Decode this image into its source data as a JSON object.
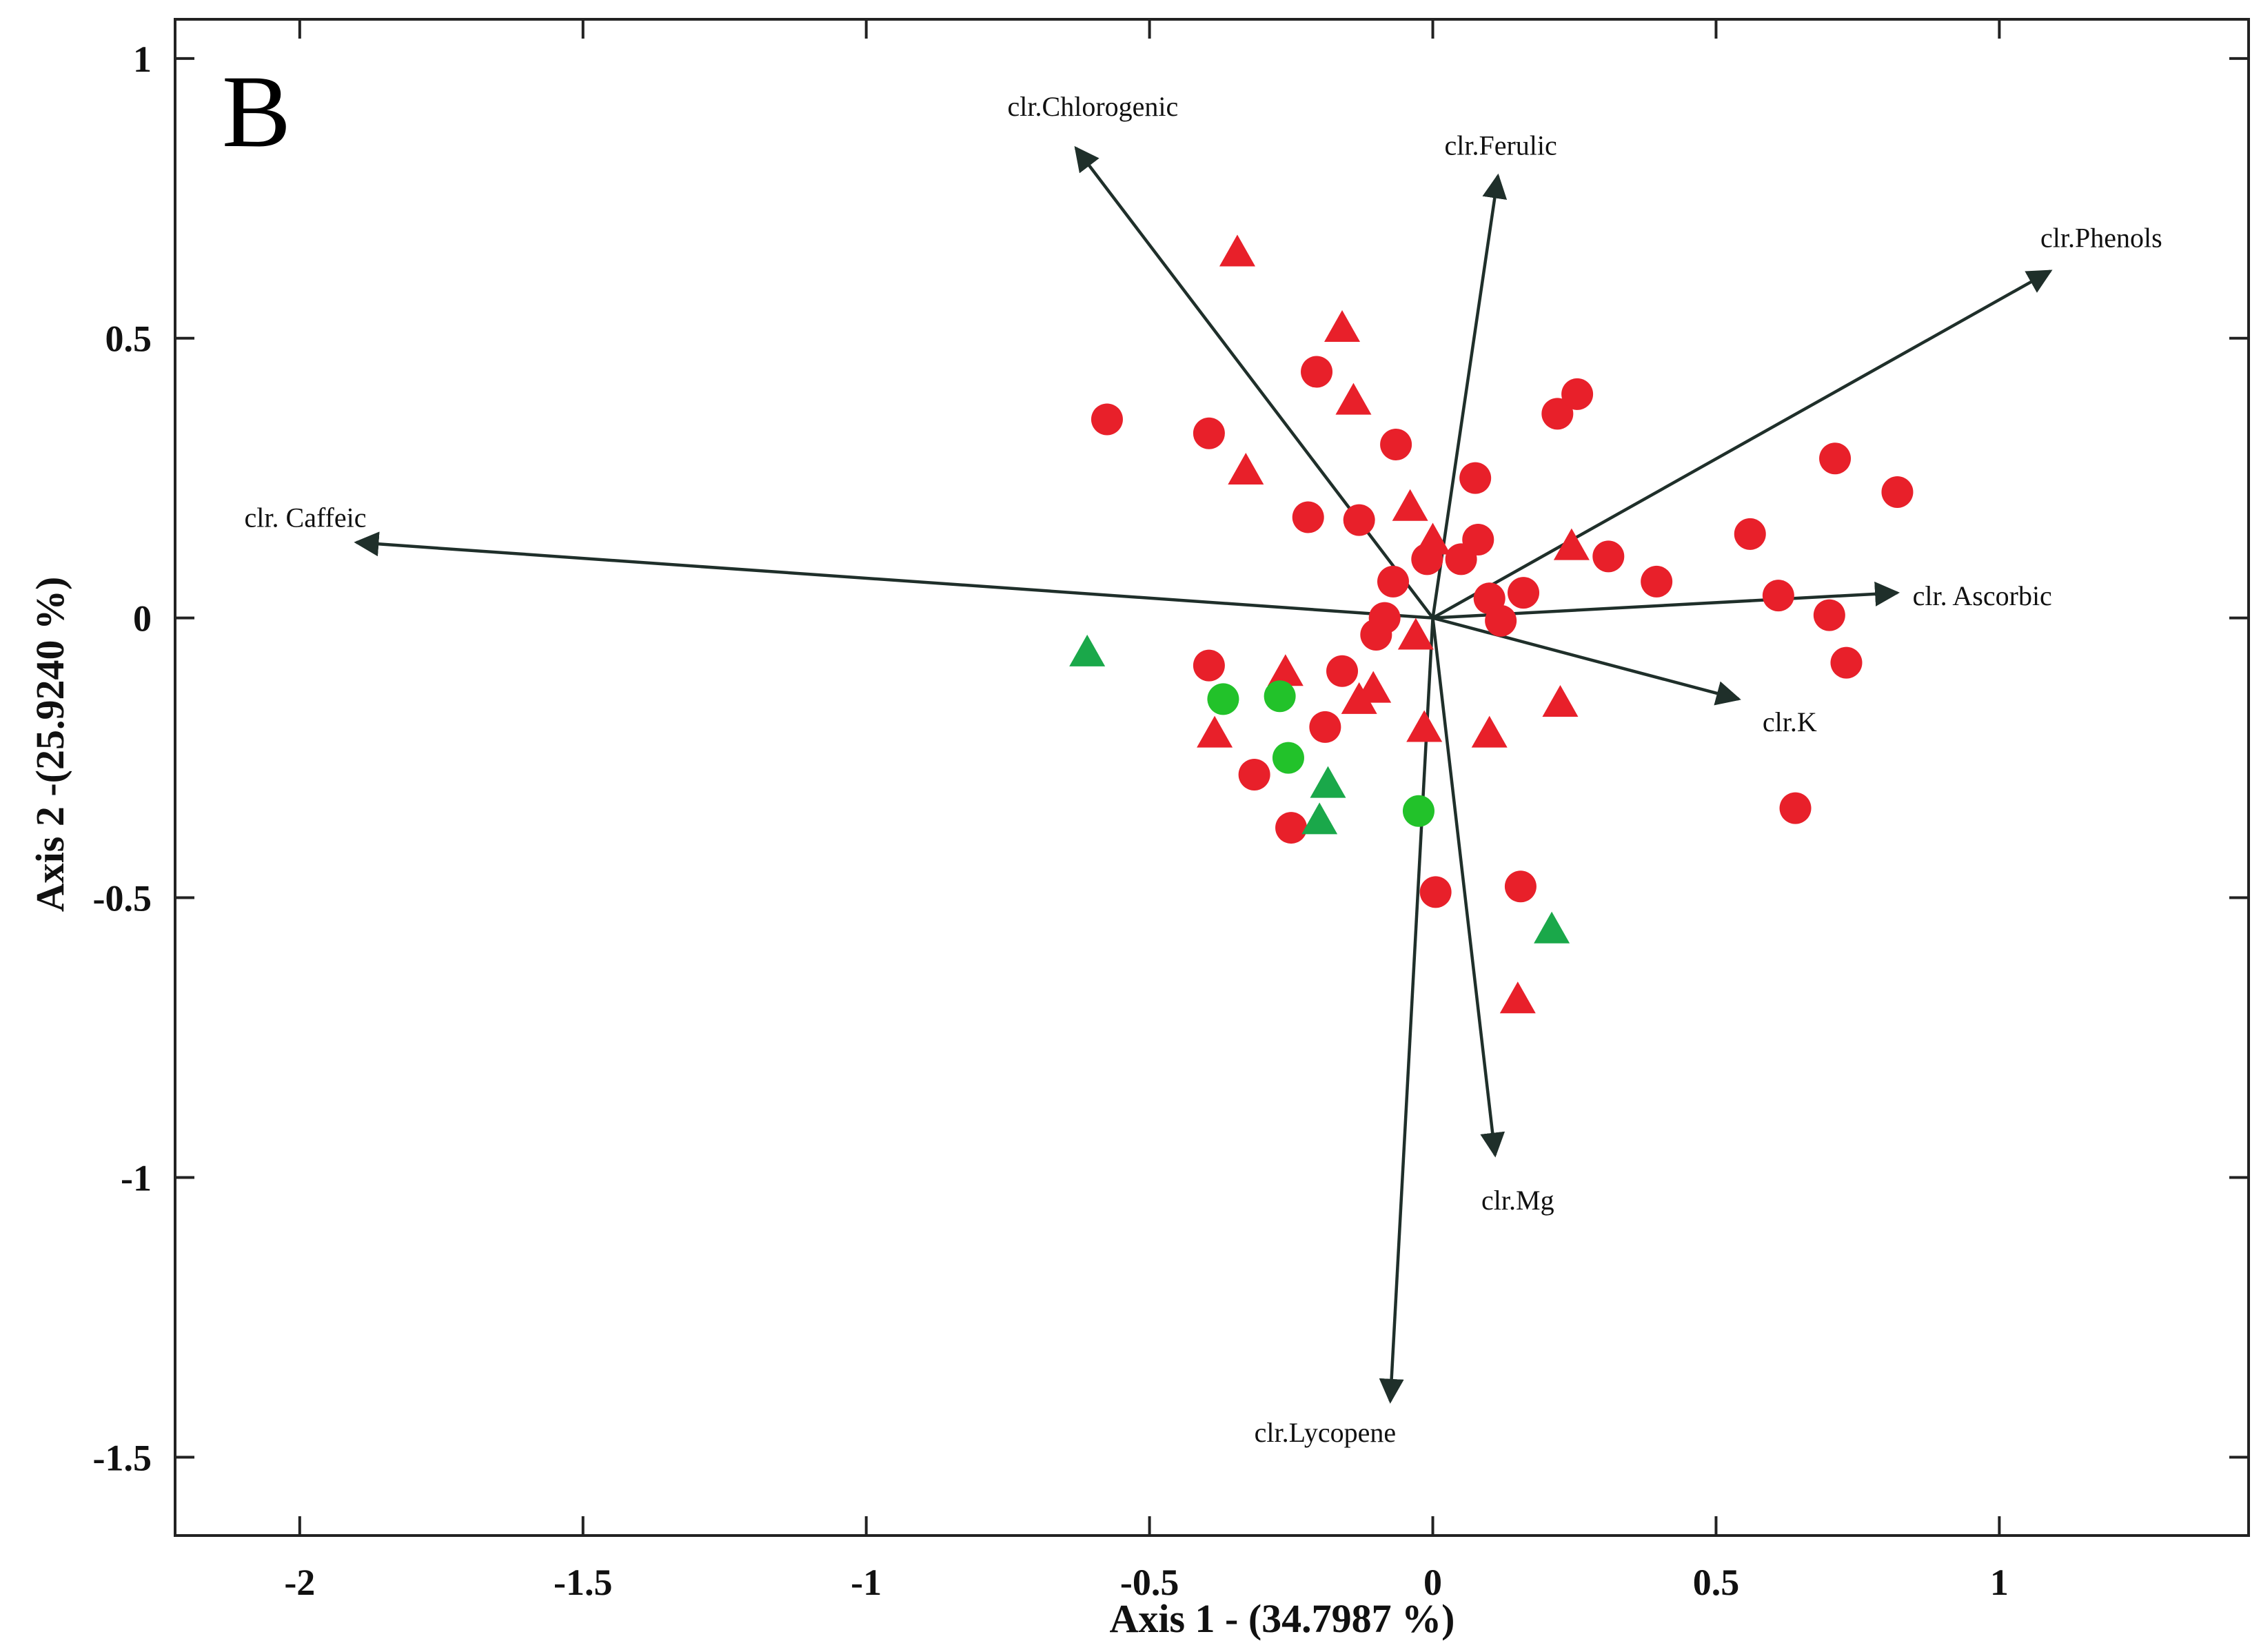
{
  "chart_data": {
    "type": "scatter",
    "panel_label": "B",
    "xlabel": "Axis 1 - (34.7987  %)",
    "ylabel": "Axis 2 -(25.9240 %)",
    "xlim": [
      -2.22,
      1.44
    ],
    "ylim": [
      -1.64,
      1.07
    ],
    "xticks": [
      -2,
      -1.5,
      -1,
      -0.5,
      0,
      0.5,
      1
    ],
    "yticks": [
      1,
      0.5,
      0,
      -0.5,
      -1,
      -1.5
    ],
    "xtick_labels": [
      "-2",
      "-1.5",
      "-1",
      "-0.5",
      "0",
      "0.5",
      "1"
    ],
    "ytick_labels": [
      "1",
      "0.5",
      "0",
      "-0.5",
      "-1",
      "-1.5"
    ],
    "colors": {
      "red": "#e8202a",
      "green": "#1aa84a",
      "green_circle": "#22c22a",
      "vector": "#1f2f2a"
    },
    "vectors": [
      {
        "name": "clr.Chlorogenic",
        "x": -0.63,
        "y": 0.84,
        "label_x": -0.6,
        "label_y": 0.915
      },
      {
        "name": "clr.Ferulic",
        "x": 0.115,
        "y": 0.79,
        "label_x": 0.12,
        "label_y": 0.845
      },
      {
        "name": "clr.Phenols",
        "x": 1.09,
        "y": 0.62,
        "label_x": 1.18,
        "label_y": 0.68
      },
      {
        "name": "clr. Caffeic",
        "x": -1.9,
        "y": 0.135,
        "label_x": -1.99,
        "label_y": 0.18
      },
      {
        "name": "clr. Ascorbic",
        "x": 0.82,
        "y": 0.045,
        "label_x": 0.97,
        "label_y": 0.04
      },
      {
        "name": "clr.K",
        "x": 0.54,
        "y": -0.145,
        "label_x": 0.63,
        "label_y": -0.185
      },
      {
        "name": "clr.Mg",
        "x": 0.11,
        "y": -0.96,
        "label_x": 0.15,
        "label_y": -1.04
      },
      {
        "name": "clr.Lycopene",
        "x": -0.075,
        "y": -1.4,
        "label_x": -0.19,
        "label_y": -1.455
      }
    ],
    "series": [
      {
        "name": "red circles",
        "marker": "circle",
        "color": "#e8202a",
        "points": [
          [
            -0.575,
            0.355
          ],
          [
            -0.395,
            0.33
          ],
          [
            -0.205,
            0.44
          ],
          [
            -0.065,
            0.31
          ],
          [
            0.075,
            0.25
          ],
          [
            0.22,
            0.365
          ],
          [
            0.255,
            0.4
          ],
          [
            0.71,
            0.285
          ],
          [
            0.82,
            0.225
          ],
          [
            -0.22,
            0.18
          ],
          [
            -0.13,
            0.175
          ],
          [
            0.08,
            0.14
          ],
          [
            0.05,
            0.105
          ],
          [
            -0.01,
            0.105
          ],
          [
            0.31,
            0.11
          ],
          [
            0.56,
            0.15
          ],
          [
            0.395,
            0.065
          ],
          [
            -0.07,
            0.065
          ],
          [
            0.1,
            0.035
          ],
          [
            0.16,
            0.045
          ],
          [
            0.61,
            0.04
          ],
          [
            0.7,
            0.005
          ],
          [
            -0.085,
            0.0
          ],
          [
            0.12,
            -0.005
          ],
          [
            -0.1,
            -0.03
          ],
          [
            0.73,
            -0.08
          ],
          [
            -0.395,
            -0.085
          ],
          [
            -0.16,
            -0.095
          ],
          [
            -0.19,
            -0.195
          ],
          [
            -0.315,
            -0.28
          ],
          [
            -0.25,
            -0.375
          ],
          [
            0.64,
            -0.34
          ],
          [
            0.155,
            -0.48
          ],
          [
            0.005,
            -0.49
          ]
        ]
      },
      {
        "name": "red triangles",
        "marker": "triangle",
        "color": "#e8202a",
        "points": [
          [
            -0.345,
            0.65
          ],
          [
            -0.16,
            0.515
          ],
          [
            -0.14,
            0.385
          ],
          [
            -0.33,
            0.26
          ],
          [
            -0.04,
            0.195
          ],
          [
            0.0,
            0.135
          ],
          [
            0.245,
            0.125
          ],
          [
            -0.03,
            -0.035
          ],
          [
            -0.26,
            -0.1
          ],
          [
            -0.105,
            -0.13
          ],
          [
            -0.13,
            -0.15
          ],
          [
            -0.385,
            -0.21
          ],
          [
            -0.015,
            -0.2
          ],
          [
            0.1,
            -0.21
          ],
          [
            0.225,
            -0.155
          ],
          [
            0.15,
            -0.685
          ]
        ]
      },
      {
        "name": "green circles",
        "marker": "circle",
        "color": "#22c22a",
        "points": [
          [
            -0.37,
            -0.145
          ],
          [
            -0.27,
            -0.14
          ],
          [
            -0.255,
            -0.25
          ],
          [
            -0.025,
            -0.345
          ]
        ]
      },
      {
        "name": "green triangles",
        "marker": "triangle",
        "color": "#1aa84a",
        "points": [
          [
            -0.61,
            -0.065
          ],
          [
            -0.185,
            -0.3
          ],
          [
            -0.2,
            -0.365
          ],
          [
            0.21,
            -0.56
          ]
        ]
      }
    ]
  }
}
